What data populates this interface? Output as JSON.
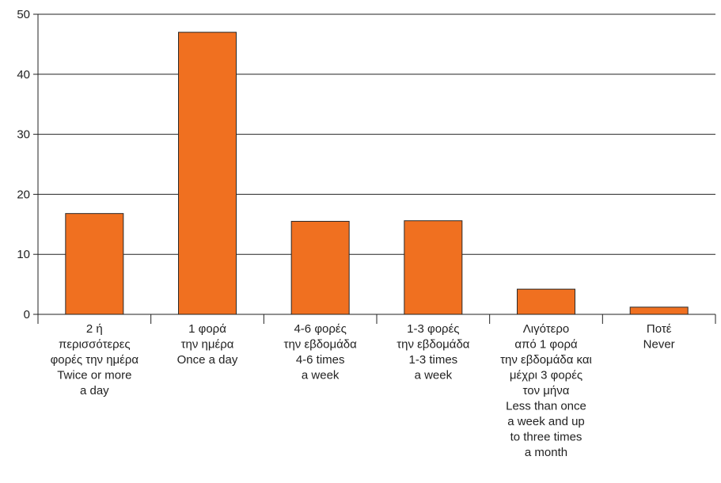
{
  "chart_data": {
    "type": "bar",
    "categories": [
      [
        "2 ή",
        "περισσότερες",
        "φορές την ημέρα",
        "Twice or more",
        "a day"
      ],
      [
        "1 φορά",
        "την ημέρα",
        "Once a day"
      ],
      [
        "4-6 φορές",
        "την εβδομάδα",
        "4-6 times",
        "a week"
      ],
      [
        "1-3 φορές",
        "την εβδομάδα",
        "1-3 times",
        "a week"
      ],
      [
        "Λιγότερο",
        "από 1 φορά",
        "την εβδομάδα και",
        "μέχρι 3 φορές",
        "τον μήνα",
        "Less than once",
        "a week and up",
        "to three times",
        "a month"
      ],
      [
        "Ποτέ",
        "Never"
      ]
    ],
    "values": [
      16.8,
      47.0,
      15.5,
      15.6,
      4.2,
      1.2
    ],
    "ylim": [
      0,
      50
    ],
    "yticks": [
      0,
      10,
      20,
      30,
      40,
      50
    ],
    "grid": true,
    "colors": {
      "bar": "#f07020",
      "bar_stroke": "#2a2a2a",
      "grid": "#222222",
      "axis": "#222222"
    }
  }
}
